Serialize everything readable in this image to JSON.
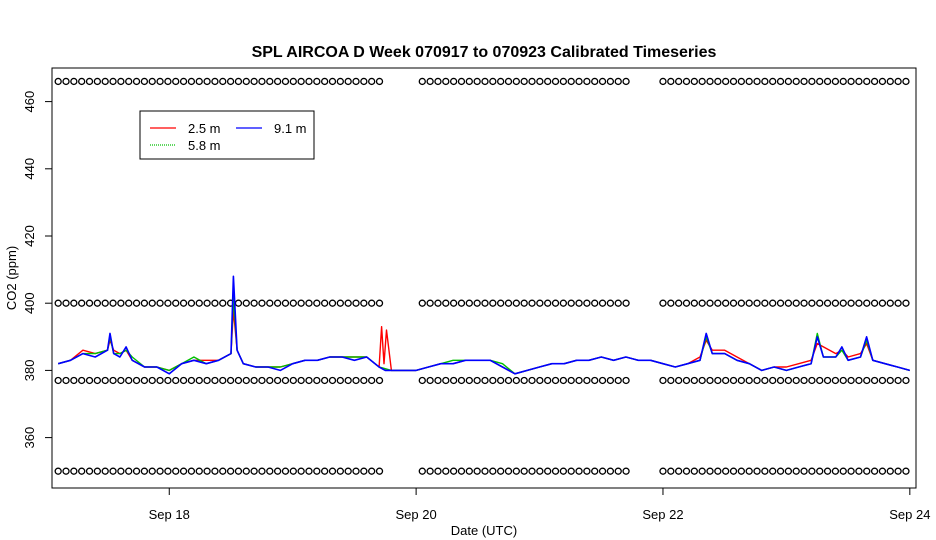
{
  "chart_data": {
    "type": "line",
    "title": "SPL AIRCOA D  Week 070917 to 070923  Calibrated Timeseries",
    "xlabel": "Date (UTC)",
    "ylabel": "CO2 (ppm)",
    "xlim": [
      17.05,
      24.05
    ],
    "ylim": [
      345,
      470
    ],
    "x_ticks": [
      {
        "value": 18,
        "label": "Sep 18"
      },
      {
        "value": 20,
        "label": "Sep 20"
      },
      {
        "value": 22,
        "label": "Sep 22"
      },
      {
        "value": 24,
        "label": "Sep 24"
      }
    ],
    "y_ticks": [
      {
        "value": 360,
        "label": "360"
      },
      {
        "value": 380,
        "label": "380"
      },
      {
        "value": 400,
        "label": "400"
      },
      {
        "value": 420,
        "label": "420"
      },
      {
        "value": 440,
        "label": "440"
      },
      {
        "value": 460,
        "label": "460"
      }
    ],
    "grid": false,
    "legend": {
      "position": "top-left",
      "entries": [
        {
          "name": "2.5 m",
          "color": "#ff0000"
        },
        {
          "name": "5.8 m",
          "color": "#00c000"
        },
        {
          "name": "9.1 m",
          "color": "#0000ff"
        }
      ]
    },
    "series": [
      {
        "name": "9.1 m",
        "color": "#0000ff",
        "x": [
          17.1,
          17.2,
          17.3,
          17.4,
          17.5,
          17.52,
          17.55,
          17.6,
          17.65,
          17.7,
          17.8,
          17.9,
          18.0,
          18.1,
          18.2,
          18.3,
          18.4,
          18.5,
          18.52,
          18.55,
          18.6,
          18.7,
          18.8,
          18.9,
          19.0,
          19.1,
          19.2,
          19.3,
          19.4,
          19.5,
          19.6,
          19.7,
          19.75,
          19.8,
          19.9,
          20.0,
          20.1,
          20.2,
          20.3,
          20.4,
          20.5,
          20.6,
          20.7,
          20.8,
          20.9,
          21.0,
          21.1,
          21.2,
          21.3,
          21.4,
          21.5,
          21.6,
          21.7,
          21.8,
          21.9,
          22.0,
          22.1,
          22.2,
          22.3,
          22.35,
          22.4,
          22.5,
          22.6,
          22.7,
          22.8,
          22.9,
          23.0,
          23.1,
          23.2,
          23.25,
          23.3,
          23.4,
          23.45,
          23.5,
          23.6,
          23.65,
          23.7,
          23.8,
          23.9,
          24.0
        ],
        "values": [
          382,
          383,
          385,
          384,
          386,
          391,
          385,
          384,
          387,
          383,
          381,
          381,
          379,
          382,
          383,
          382,
          383,
          385,
          408,
          386,
          382,
          381,
          381,
          380,
          382,
          383,
          383,
          384,
          384,
          383,
          384,
          381,
          380,
          380,
          380,
          380,
          381,
          382,
          382,
          383,
          383,
          383,
          381,
          379,
          380,
          381,
          382,
          382,
          383,
          383,
          384,
          383,
          384,
          383,
          383,
          382,
          381,
          382,
          383,
          391,
          385,
          385,
          383,
          382,
          380,
          381,
          380,
          381,
          382,
          390,
          384,
          384,
          387,
          383,
          384,
          390,
          383,
          382,
          381,
          380
        ]
      },
      {
        "name": "2.5 m",
        "color": "#ff0000",
        "x": [
          17.1,
          17.2,
          17.3,
          17.4,
          17.5,
          17.52,
          17.55,
          17.6,
          17.65,
          17.7,
          17.8,
          17.9,
          18.0,
          18.1,
          18.2,
          18.3,
          18.4,
          18.5,
          18.52,
          18.55,
          18.6,
          18.7,
          18.8,
          18.9,
          19.0,
          19.1,
          19.2,
          19.3,
          19.4,
          19.5,
          19.6,
          19.7,
          19.72,
          19.74,
          19.76,
          19.8,
          19.9,
          20.0,
          20.1,
          20.2,
          20.3,
          20.4,
          20.5,
          20.6,
          20.7,
          20.8,
          20.9,
          21.0,
          21.1,
          21.2,
          21.3,
          21.4,
          21.5,
          21.6,
          21.7,
          21.8,
          21.9,
          22.0,
          22.1,
          22.2,
          22.3,
          22.35,
          22.4,
          22.5,
          22.6,
          22.7,
          22.8,
          22.9,
          23.0,
          23.1,
          23.2,
          23.25,
          23.3,
          23.4,
          23.45,
          23.5,
          23.6,
          23.65,
          23.7,
          23.8,
          23.9,
          24.0
        ],
        "values": [
          382,
          383,
          386,
          385,
          386,
          389,
          386,
          385,
          386,
          383,
          381,
          381,
          380,
          382,
          383,
          383,
          383,
          385,
          398,
          386,
          382,
          381,
          381,
          381,
          382,
          383,
          383,
          384,
          384,
          384,
          384,
          381,
          393,
          382,
          392,
          380,
          380,
          380,
          381,
          382,
          382,
          383,
          383,
          383,
          381,
          379,
          380,
          381,
          382,
          382,
          383,
          383,
          384,
          383,
          384,
          383,
          383,
          382,
          381,
          382,
          384,
          389,
          386,
          386,
          384,
          382,
          380,
          381,
          381,
          382,
          383,
          388,
          387,
          385,
          386,
          384,
          385,
          388,
          383,
          382,
          381,
          380
        ]
      },
      {
        "name": "5.8 m",
        "color": "#00c000",
        "x": [
          17.1,
          17.2,
          17.3,
          17.4,
          17.5,
          17.52,
          17.55,
          17.6,
          17.65,
          17.7,
          17.8,
          17.9,
          18.0,
          18.1,
          18.2,
          18.3,
          18.4,
          18.5,
          18.52,
          18.55,
          18.6,
          18.7,
          18.8,
          18.9,
          19.0,
          19.1,
          19.2,
          19.3,
          19.4,
          19.5,
          19.6,
          19.7,
          19.8,
          19.9,
          20.0,
          20.1,
          20.2,
          20.3,
          20.4,
          20.5,
          20.6,
          20.7,
          20.8,
          20.9,
          21.0,
          21.1,
          21.2,
          21.3,
          21.4,
          21.5,
          21.6,
          21.7,
          21.8,
          21.9,
          22.0,
          22.1,
          22.2,
          22.3,
          22.35,
          22.4,
          22.5,
          22.6,
          22.7,
          22.8,
          22.9,
          23.0,
          23.1,
          23.2,
          23.25,
          23.3,
          23.4,
          23.45,
          23.5,
          23.6,
          23.65,
          23.7,
          23.8,
          23.9,
          24.0
        ],
        "values": [
          382,
          383,
          385,
          385,
          386,
          390,
          385,
          385,
          386,
          384,
          381,
          381,
          380,
          382,
          384,
          382,
          383,
          385,
          402,
          386,
          382,
          381,
          381,
          381,
          382,
          383,
          383,
          384,
          384,
          384,
          384,
          381,
          380,
          380,
          380,
          381,
          382,
          383,
          383,
          383,
          383,
          382,
          379,
          380,
          381,
          382,
          382,
          383,
          383,
          384,
          383,
          384,
          383,
          383,
          382,
          381,
          382,
          383,
          390,
          385,
          385,
          383,
          382,
          380,
          381,
          380,
          381,
          382,
          391,
          384,
          384,
          386,
          383,
          384,
          389,
          383,
          382,
          381,
          380
        ]
      }
    ],
    "flag_rows": [
      {
        "value": 466,
        "segments": [
          [
            17.1,
            19.75
          ],
          [
            20.05,
            21.75
          ],
          [
            22.0,
            24.0
          ]
        ]
      },
      {
        "value": 400,
        "segments": [
          [
            17.1,
            19.75
          ],
          [
            20.05,
            21.75
          ],
          [
            22.0,
            24.0
          ]
        ]
      },
      {
        "value": 377,
        "segments": [
          [
            17.1,
            19.75
          ],
          [
            20.05,
            21.75
          ],
          [
            22.0,
            24.0
          ]
        ]
      },
      {
        "value": 350,
        "segments": [
          [
            17.1,
            19.75
          ],
          [
            20.05,
            21.75
          ],
          [
            22.0,
            24.0
          ]
        ]
      }
    ]
  }
}
